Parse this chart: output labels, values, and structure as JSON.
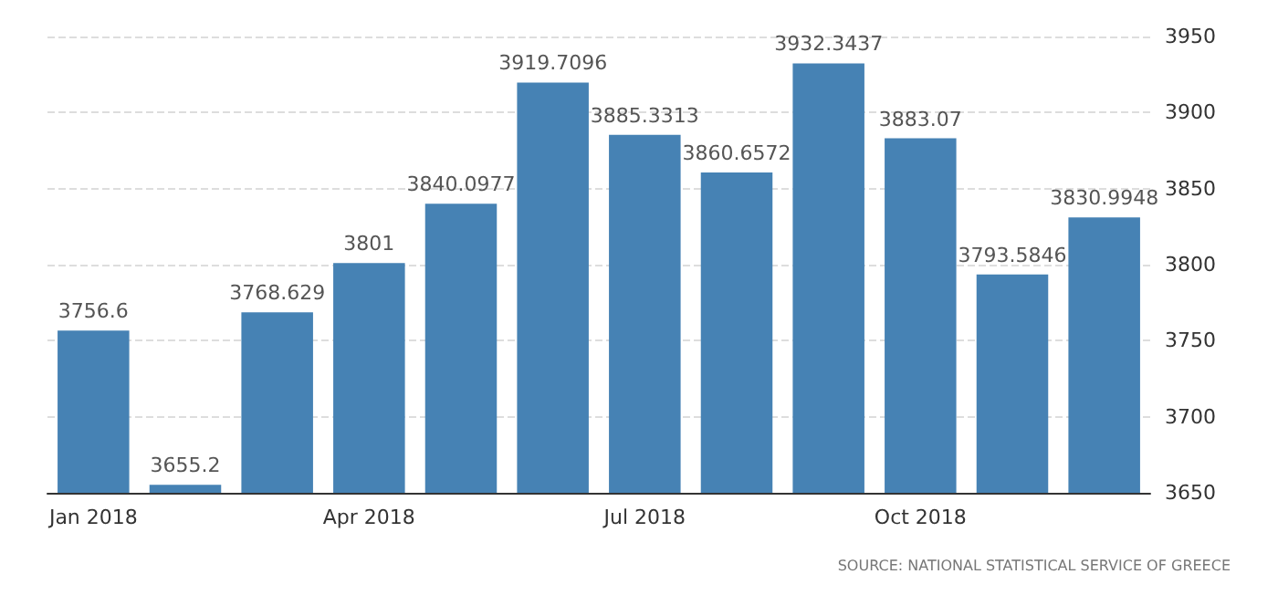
{
  "chart_data": {
    "type": "bar",
    "categories": [
      "Jan 2018",
      null,
      null,
      "Apr 2018",
      null,
      null,
      "Jul 2018",
      null,
      null,
      "Oct 2018",
      null,
      null
    ],
    "values": [
      3756.6,
      3655.2,
      3768.629,
      3801,
      3840.0977,
      3919.7096,
      3885.3313,
      3860.6572,
      3932.3437,
      3883.07,
      3793.5846,
      3830.9948
    ],
    "color": "#4682b4",
    "data_labels": true,
    "ylim": [
      3650,
      3950
    ],
    "yticks": [
      3650,
      3700,
      3750,
      3800,
      3850,
      3900,
      3950
    ],
    "grid": "y",
    "annotations": [
      "SOURCE: NATIONAL STATISTICAL SERVICE OF GREECE"
    ]
  }
}
